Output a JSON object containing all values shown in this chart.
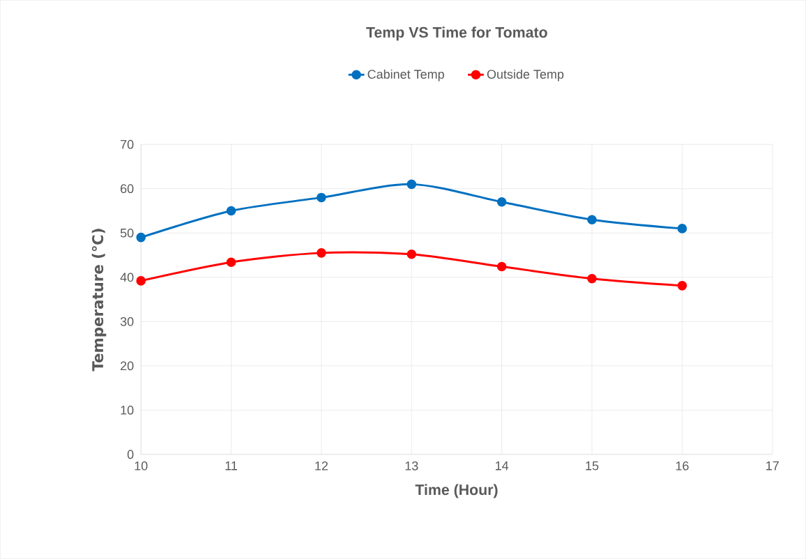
{
  "chart_data": {
    "type": "line",
    "title": "Temp VS Time for Tomato",
    "xlabel": "Time (Hour)",
    "ylabel": "Temperature (℃)",
    "x": [
      10,
      11,
      12,
      13,
      14,
      15,
      16
    ],
    "series": [
      {
        "name": "Cabinet Temp",
        "color": "#0070c0",
        "values": [
          49,
          55,
          58,
          61,
          57,
          53,
          51
        ]
      },
      {
        "name": "Outside Temp",
        "color": "#ff0000",
        "values": [
          39.2,
          43.4,
          45.5,
          45.2,
          42.4,
          39.7,
          38.1
        ]
      }
    ],
    "xlim": [
      10,
      17
    ],
    "xticks": [
      10,
      11,
      12,
      13,
      14,
      15,
      16,
      17
    ],
    "ylim": [
      0,
      70
    ],
    "yticks": [
      0,
      10,
      20,
      30,
      40,
      50,
      60,
      70
    ],
    "grid": true,
    "legend": "top",
    "marker": "circle",
    "line_style": "solid"
  }
}
